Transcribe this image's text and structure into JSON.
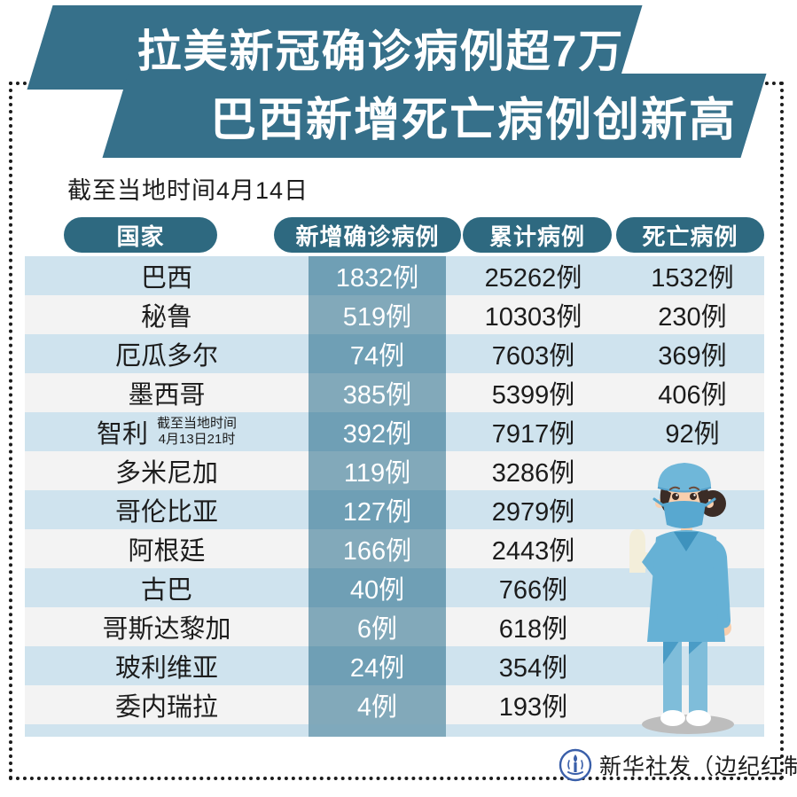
{
  "title": {
    "line1": "拉美新冠确诊病例超7万",
    "line2": "巴西新增死亡病例创新高"
  },
  "subtitle": "截至当地时间4月14日",
  "table": {
    "headers": [
      "国家",
      "新增确诊病例",
      "累计病例",
      "死亡病例"
    ],
    "rows": [
      {
        "country": "巴西",
        "note": [],
        "new_cases": "1832例",
        "total": "25262例",
        "deaths": "1532例"
      },
      {
        "country": "秘鲁",
        "note": [],
        "new_cases": "519例",
        "total": "10303例",
        "deaths": "230例"
      },
      {
        "country": "厄瓜多尔",
        "note": [],
        "new_cases": "74例",
        "total": "7603例",
        "deaths": "369例"
      },
      {
        "country": "墨西哥",
        "note": [],
        "new_cases": "385例",
        "total": "5399例",
        "deaths": "406例"
      },
      {
        "country": "智利",
        "note": [
          "截至当地时间",
          "4月13日21时"
        ],
        "new_cases": "392例",
        "total": "7917例",
        "deaths": "92例"
      },
      {
        "country": "多米尼加",
        "note": [],
        "new_cases": "119例",
        "total": "3286例",
        "deaths": ""
      },
      {
        "country": "哥伦比亚",
        "note": [],
        "new_cases": "127例",
        "total": "2979例",
        "deaths": ""
      },
      {
        "country": "阿根廷",
        "note": [],
        "new_cases": "166例",
        "total": "2443例",
        "deaths": ""
      },
      {
        "country": "古巴",
        "note": [],
        "new_cases": "40例",
        "total": "766例",
        "deaths": ""
      },
      {
        "country": "哥斯达黎加",
        "note": [],
        "new_cases": "6例",
        "total": "618例",
        "deaths": ""
      },
      {
        "country": "玻利维亚",
        "note": [],
        "new_cases": "24例",
        "total": "354例",
        "deaths": ""
      },
      {
        "country": "委内瑞拉",
        "note": [],
        "new_cases": "4例",
        "total": "193例",
        "deaths": ""
      }
    ]
  },
  "footer": {
    "credit": "新华社发（边纪红制图）",
    "logo": "xinhua-emblem"
  },
  "colors": {
    "banner": "#36708a",
    "pill": "#2e6980",
    "row_light": "#cfe3ee",
    "row_white": "#f3f3f3",
    "band_dark": "#6f9fb5",
    "band_light": "#82a9ba",
    "band_strip": "#7fa9bc",
    "text": "#1c1c1c"
  },
  "chart_data": {
    "type": "table",
    "title": "拉美新冠确诊病例超7万 巴西新增死亡病例创新高",
    "as_of": "截至当地时间4月14日",
    "unit": "例",
    "columns": [
      "国家",
      "新增确诊病例",
      "累计病例",
      "死亡病例"
    ],
    "rows": [
      [
        "巴西",
        1832,
        25262,
        1532
      ],
      [
        "秘鲁",
        519,
        10303,
        230
      ],
      [
        "厄瓜多尔",
        74,
        7603,
        369
      ],
      [
        "墨西哥",
        385,
        5399,
        406
      ],
      [
        "智利",
        392,
        7917,
        92
      ],
      [
        "多米尼加",
        119,
        3286,
        null
      ],
      [
        "哥伦比亚",
        127,
        2979,
        null
      ],
      [
        "阿根廷",
        166,
        2443,
        null
      ],
      [
        "古巴",
        40,
        766,
        null
      ],
      [
        "哥斯达黎加",
        6,
        618,
        null
      ],
      [
        "玻利维亚",
        24,
        354,
        null
      ],
      [
        "委内瑞拉",
        4,
        193,
        null
      ]
    ],
    "notes": {
      "智利": "截至当地时间4月13日21时"
    },
    "source": "新华社发（边纪红制图）"
  }
}
